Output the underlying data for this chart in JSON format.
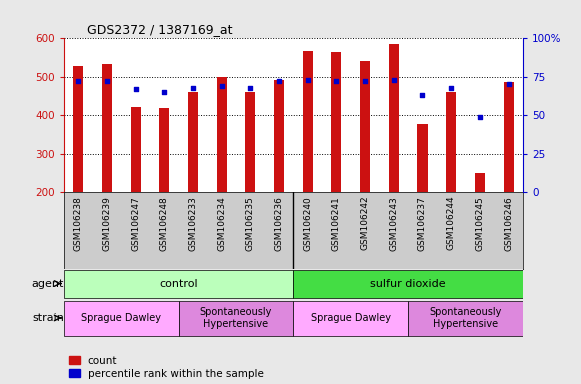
{
  "title": "GDS2372 / 1387169_at",
  "samples": [
    "GSM106238",
    "GSM106239",
    "GSM106247",
    "GSM106248",
    "GSM106233",
    "GSM106234",
    "GSM106235",
    "GSM106236",
    "GSM106240",
    "GSM106241",
    "GSM106242",
    "GSM106243",
    "GSM106237",
    "GSM106244",
    "GSM106245",
    "GSM106246"
  ],
  "counts": [
    528,
    534,
    422,
    420,
    460,
    500,
    460,
    492,
    568,
    565,
    540,
    585,
    376,
    460,
    250,
    486
  ],
  "percentile_ranks": [
    72,
    72,
    67,
    65,
    68,
    69,
    68,
    72,
    73,
    72,
    72,
    73,
    63,
    68,
    49,
    70
  ],
  "ylim_left": [
    200,
    600
  ],
  "ylim_right": [
    0,
    100
  ],
  "yticks_left": [
    200,
    300,
    400,
    500,
    600
  ],
  "yticks_right": [
    0,
    25,
    50,
    75,
    100
  ],
  "bar_color": "#cc1111",
  "dot_color": "#0000cc",
  "bar_width": 0.35,
  "agent_groups": [
    {
      "label": "control",
      "start": 0,
      "end": 8,
      "color": "#bbffbb"
    },
    {
      "label": "sulfur dioxide",
      "start": 8,
      "end": 16,
      "color": "#44dd44"
    }
  ],
  "strain_groups": [
    {
      "label": "Sprague Dawley",
      "start": 0,
      "end": 4,
      "color": "#ffaaff"
    },
    {
      "label": "Spontaneously\nHypertensive",
      "start": 4,
      "end": 8,
      "color": "#dd88dd"
    },
    {
      "label": "Sprague Dawley",
      "start": 8,
      "end": 12,
      "color": "#ffaaff"
    },
    {
      "label": "Spontaneously\nHypertensive",
      "start": 12,
      "end": 16,
      "color": "#dd88dd"
    }
  ],
  "grid_style": "dotted",
  "bg_color": "#e8e8e8",
  "left_label_color": "#cc1111",
  "right_label_color": "#0000cc",
  "agent_row_label": "agent",
  "strain_row_label": "strain",
  "xtick_bg": "#cccccc",
  "fig_bg": "#e8e8e8"
}
